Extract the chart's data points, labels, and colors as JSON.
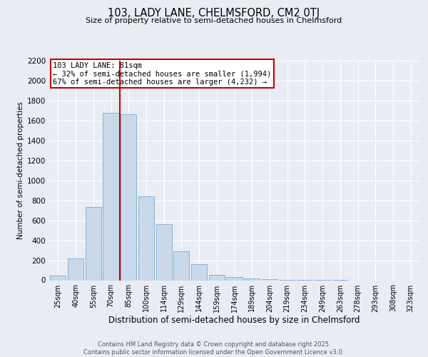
{
  "title": "103, LADY LANE, CHELMSFORD, CM2 0TJ",
  "subtitle": "Size of property relative to semi-detached houses in Chelmsford",
  "xlabel": "Distribution of semi-detached houses by size in Chelmsford",
  "ylabel": "Number of semi-detached properties",
  "categories": [
    "25sqm",
    "40sqm",
    "55sqm",
    "70sqm",
    "85sqm",
    "100sqm",
    "114sqm",
    "129sqm",
    "144sqm",
    "159sqm",
    "174sqm",
    "189sqm",
    "204sqm",
    "219sqm",
    "234sqm",
    "249sqm",
    "263sqm",
    "278sqm",
    "293sqm",
    "308sqm",
    "323sqm"
  ],
  "values": [
    50,
    220,
    730,
    1680,
    1660,
    840,
    565,
    290,
    160,
    55,
    30,
    15,
    8,
    5,
    3,
    2,
    1,
    0,
    0,
    0,
    0
  ],
  "bar_color": "#c9d9ea",
  "bar_edge_color": "#7aaacc",
  "vline_color": "#cc0000",
  "vline_pos": 3.5,
  "annotation_title": "103 LADY LANE: 81sqm",
  "annotation_line1": "← 32% of semi-detached houses are smaller (1,994)",
  "annotation_line2": "67% of semi-detached houses are larger (4,232) →",
  "ylim": [
    0,
    2200
  ],
  "yticks": [
    0,
    200,
    400,
    600,
    800,
    1000,
    1200,
    1400,
    1600,
    1800,
    2000,
    2200
  ],
  "background_color": "#eaecf4",
  "grid_color": "#ffffff",
  "footer_line1": "Contains HM Land Registry data © Crown copyright and database right 2025.",
  "footer_line2": "Contains public sector information licensed under the Open Government Licence v3.0."
}
